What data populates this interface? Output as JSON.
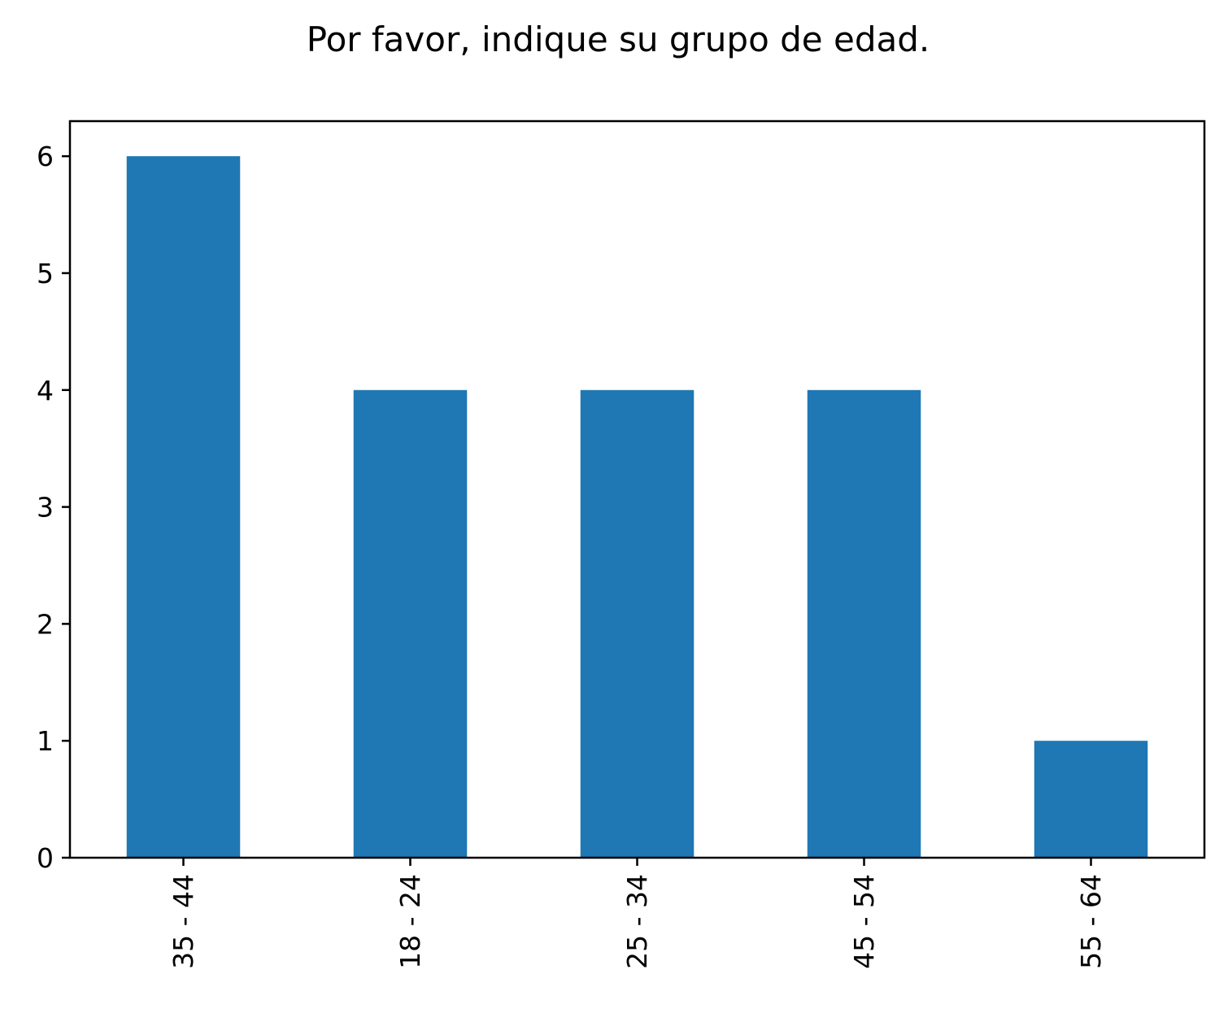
{
  "chart_data": {
    "type": "bar",
    "title": "Por favor, indique su grupo de edad.",
    "xlabel": "",
    "ylabel": "",
    "categories": [
      "35 - 44",
      "18 - 24",
      "25 - 34",
      "45 - 54",
      "55 - 64"
    ],
    "values": [
      6,
      4,
      4,
      4,
      1
    ],
    "ylim": [
      0,
      6.3
    ],
    "yticks": [
      0,
      1,
      2,
      3,
      4,
      5,
      6
    ],
    "grid": false,
    "bar_color": "#1f77b4",
    "x_tick_rotation": "vertical"
  }
}
